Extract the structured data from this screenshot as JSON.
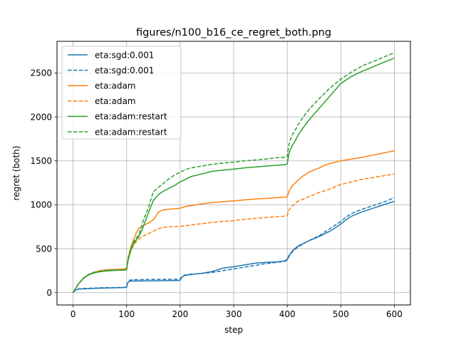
{
  "chart_data": {
    "type": "line",
    "title": "figures/n100_b16_ce_regret_both.png",
    "xlabel": "step",
    "ylabel": "regret (both)",
    "xlim": [
      -30,
      630
    ],
    "ylim": [
      -140,
      2860
    ],
    "xticks": [
      0,
      100,
      200,
      300,
      400,
      500,
      600
    ],
    "yticks": [
      0,
      500,
      1000,
      1500,
      2000,
      2500
    ],
    "grid": true,
    "legend_position": "top-left",
    "series": [
      {
        "name": "eta:sgd:0.001",
        "color": "#1f77b4",
        "dash": "solid",
        "points": [
          [
            0,
            0
          ],
          [
            5,
            30
          ],
          [
            10,
            40
          ],
          [
            20,
            43
          ],
          [
            40,
            48
          ],
          [
            60,
            52
          ],
          [
            80,
            55
          ],
          [
            95,
            58
          ],
          [
            100,
            60
          ],
          [
            102,
            110
          ],
          [
            105,
            128
          ],
          [
            110,
            132
          ],
          [
            150,
            135
          ],
          [
            190,
            138
          ],
          [
            200,
            140
          ],
          [
            203,
            175
          ],
          [
            208,
            195
          ],
          [
            220,
            205
          ],
          [
            240,
            220
          ],
          [
            260,
            240
          ],
          [
            270,
            260
          ],
          [
            280,
            280
          ],
          [
            300,
            295
          ],
          [
            320,
            315
          ],
          [
            340,
            335
          ],
          [
            360,
            345
          ],
          [
            380,
            350
          ],
          [
            395,
            360
          ],
          [
            400,
            380
          ],
          [
            403,
            420
          ],
          [
            410,
            480
          ],
          [
            420,
            530
          ],
          [
            440,
            590
          ],
          [
            460,
            640
          ],
          [
            480,
            700
          ],
          [
            500,
            780
          ],
          [
            510,
            830
          ],
          [
            520,
            870
          ],
          [
            540,
            920
          ],
          [
            560,
            960
          ],
          [
            580,
            1000
          ],
          [
            600,
            1040
          ]
        ]
      },
      {
        "name": "eta:sgd:0.001",
        "color": "#1f77b4",
        "dash": "dashed",
        "points": [
          [
            0,
            0
          ],
          [
            5,
            32
          ],
          [
            10,
            43
          ],
          [
            20,
            47
          ],
          [
            40,
            52
          ],
          [
            60,
            56
          ],
          [
            80,
            58
          ],
          [
            95,
            61
          ],
          [
            100,
            62
          ],
          [
            102,
            118
          ],
          [
            105,
            140
          ],
          [
            110,
            146
          ],
          [
            150,
            150
          ],
          [
            190,
            152
          ],
          [
            200,
            155
          ],
          [
            203,
            180
          ],
          [
            208,
            200
          ],
          [
            220,
            210
          ],
          [
            240,
            218
          ],
          [
            260,
            230
          ],
          [
            270,
            240
          ],
          [
            280,
            250
          ],
          [
            300,
            270
          ],
          [
            320,
            290
          ],
          [
            340,
            310
          ],
          [
            360,
            330
          ],
          [
            380,
            345
          ],
          [
            395,
            355
          ],
          [
            400,
            370
          ],
          [
            403,
            410
          ],
          [
            410,
            470
          ],
          [
            420,
            520
          ],
          [
            440,
            590
          ],
          [
            460,
            650
          ],
          [
            480,
            730
          ],
          [
            500,
            810
          ],
          [
            510,
            860
          ],
          [
            520,
            900
          ],
          [
            540,
            950
          ],
          [
            560,
            990
          ],
          [
            580,
            1030
          ],
          [
            600,
            1080
          ]
        ]
      },
      {
        "name": "eta:adam",
        "color": "#ff7f0e",
        "dash": "solid",
        "points": [
          [
            0,
            0
          ],
          [
            5,
            50
          ],
          [
            10,
            100
          ],
          [
            20,
            170
          ],
          [
            30,
            210
          ],
          [
            40,
            235
          ],
          [
            50,
            250
          ],
          [
            60,
            258
          ],
          [
            70,
            262
          ],
          [
            80,
            265
          ],
          [
            90,
            268
          ],
          [
            95,
            270
          ],
          [
            100,
            275
          ],
          [
            103,
            400
          ],
          [
            108,
            520
          ],
          [
            113,
            600
          ],
          [
            118,
            680
          ],
          [
            123,
            730
          ],
          [
            130,
            760
          ],
          [
            140,
            790
          ],
          [
            150,
            830
          ],
          [
            160,
            920
          ],
          [
            170,
            945
          ],
          [
            180,
            950
          ],
          [
            190,
            955
          ],
          [
            200,
            960
          ],
          [
            210,
            980
          ],
          [
            220,
            990
          ],
          [
            240,
            1010
          ],
          [
            260,
            1025
          ],
          [
            280,
            1035
          ],
          [
            300,
            1045
          ],
          [
            320,
            1055
          ],
          [
            340,
            1065
          ],
          [
            360,
            1072
          ],
          [
            380,
            1080
          ],
          [
            395,
            1085
          ],
          [
            400,
            1090
          ],
          [
            403,
            1150
          ],
          [
            410,
            1220
          ],
          [
            420,
            1280
          ],
          [
            430,
            1330
          ],
          [
            440,
            1370
          ],
          [
            460,
            1420
          ],
          [
            470,
            1450
          ],
          [
            480,
            1470
          ],
          [
            500,
            1500
          ],
          [
            520,
            1520
          ],
          [
            540,
            1540
          ],
          [
            560,
            1565
          ],
          [
            580,
            1590
          ],
          [
            600,
            1615
          ]
        ]
      },
      {
        "name": "eta:adam",
        "color": "#ff7f0e",
        "dash": "dashed",
        "points": [
          [
            0,
            0
          ],
          [
            5,
            50
          ],
          [
            10,
            100
          ],
          [
            20,
            170
          ],
          [
            30,
            210
          ],
          [
            40,
            235
          ],
          [
            50,
            245
          ],
          [
            60,
            250
          ],
          [
            70,
            253
          ],
          [
            80,
            255
          ],
          [
            90,
            257
          ],
          [
            95,
            258
          ],
          [
            100,
            262
          ],
          [
            103,
            380
          ],
          [
            108,
            480
          ],
          [
            113,
            540
          ],
          [
            118,
            580
          ],
          [
            123,
            610
          ],
          [
            130,
            640
          ],
          [
            140,
            670
          ],
          [
            150,
            700
          ],
          [
            160,
            730
          ],
          [
            170,
            745
          ],
          [
            180,
            750
          ],
          [
            200,
            755
          ],
          [
            220,
            770
          ],
          [
            240,
            785
          ],
          [
            260,
            800
          ],
          [
            280,
            810
          ],
          [
            300,
            820
          ],
          [
            320,
            835
          ],
          [
            340,
            845
          ],
          [
            360,
            855
          ],
          [
            380,
            865
          ],
          [
            395,
            870
          ],
          [
            400,
            875
          ],
          [
            403,
            940
          ],
          [
            410,
            990
          ],
          [
            420,
            1040
          ],
          [
            440,
            1090
          ],
          [
            460,
            1140
          ],
          [
            480,
            1180
          ],
          [
            500,
            1230
          ],
          [
            520,
            1260
          ],
          [
            540,
            1290
          ],
          [
            560,
            1310
          ],
          [
            580,
            1330
          ],
          [
            600,
            1350
          ]
        ]
      },
      {
        "name": "eta:adam:restart",
        "color": "#2ca02c",
        "dash": "solid",
        "points": [
          [
            0,
            0
          ],
          [
            5,
            50
          ],
          [
            10,
            100
          ],
          [
            20,
            165
          ],
          [
            30,
            205
          ],
          [
            40,
            225
          ],
          [
            50,
            238
          ],
          [
            60,
            245
          ],
          [
            70,
            250
          ],
          [
            80,
            253
          ],
          [
            90,
            255
          ],
          [
            95,
            256
          ],
          [
            100,
            260
          ],
          [
            103,
            380
          ],
          [
            108,
            480
          ],
          [
            113,
            560
          ],
          [
            118,
            600
          ],
          [
            123,
            640
          ],
          [
            130,
            730
          ],
          [
            140,
            900
          ],
          [
            150,
            1050
          ],
          [
            160,
            1120
          ],
          [
            170,
            1160
          ],
          [
            180,
            1190
          ],
          [
            190,
            1220
          ],
          [
            200,
            1260
          ],
          [
            210,
            1290
          ],
          [
            220,
            1320
          ],
          [
            240,
            1350
          ],
          [
            260,
            1380
          ],
          [
            280,
            1395
          ],
          [
            300,
            1405
          ],
          [
            320,
            1420
          ],
          [
            340,
            1430
          ],
          [
            360,
            1440
          ],
          [
            380,
            1450
          ],
          [
            395,
            1455
          ],
          [
            400,
            1465
          ],
          [
            403,
            1580
          ],
          [
            408,
            1660
          ],
          [
            415,
            1730
          ],
          [
            420,
            1790
          ],
          [
            430,
            1880
          ],
          [
            440,
            1960
          ],
          [
            460,
            2100
          ],
          [
            480,
            2240
          ],
          [
            500,
            2380
          ],
          [
            520,
            2460
          ],
          [
            540,
            2520
          ],
          [
            560,
            2570
          ],
          [
            580,
            2620
          ],
          [
            600,
            2670
          ]
        ]
      },
      {
        "name": "eta:adam:restart",
        "color": "#2ca02c",
        "dash": "dashed",
        "points": [
          [
            0,
            0
          ],
          [
            5,
            50
          ],
          [
            10,
            100
          ],
          [
            20,
            170
          ],
          [
            30,
            210
          ],
          [
            40,
            230
          ],
          [
            50,
            243
          ],
          [
            60,
            250
          ],
          [
            70,
            255
          ],
          [
            80,
            258
          ],
          [
            90,
            259
          ],
          [
            95,
            260
          ],
          [
            100,
            262
          ],
          [
            103,
            400
          ],
          [
            108,
            500
          ],
          [
            113,
            580
          ],
          [
            118,
            620
          ],
          [
            123,
            660
          ],
          [
            130,
            800
          ],
          [
            140,
            960
          ],
          [
            150,
            1150
          ],
          [
            160,
            1200
          ],
          [
            170,
            1250
          ],
          [
            180,
            1300
          ],
          [
            190,
            1340
          ],
          [
            200,
            1370
          ],
          [
            210,
            1400
          ],
          [
            220,
            1420
          ],
          [
            240,
            1440
          ],
          [
            260,
            1460
          ],
          [
            280,
            1475
          ],
          [
            300,
            1485
          ],
          [
            320,
            1500
          ],
          [
            340,
            1510
          ],
          [
            360,
            1520
          ],
          [
            380,
            1535
          ],
          [
            395,
            1540
          ],
          [
            400,
            1550
          ],
          [
            403,
            1680
          ],
          [
            408,
            1780
          ],
          [
            415,
            1850
          ],
          [
            420,
            1910
          ],
          [
            430,
            2000
          ],
          [
            440,
            2080
          ],
          [
            460,
            2210
          ],
          [
            480,
            2330
          ],
          [
            500,
            2430
          ],
          [
            520,
            2510
          ],
          [
            540,
            2580
          ],
          [
            560,
            2630
          ],
          [
            580,
            2680
          ],
          [
            600,
            2730
          ]
        ]
      }
    ]
  }
}
